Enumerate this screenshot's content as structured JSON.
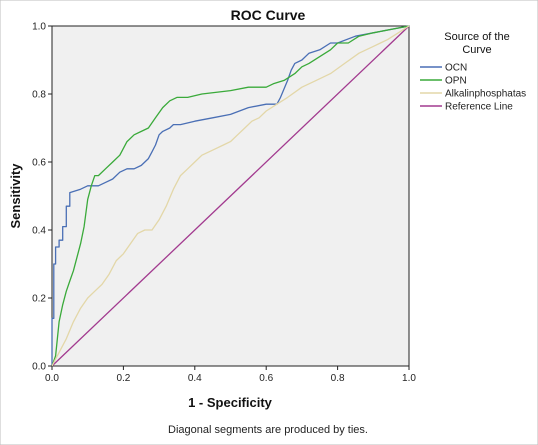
{
  "chart_data": {
    "type": "line",
    "title": "ROC Curve",
    "xlabel": "1 - Specificity",
    "ylabel": "Sensitivity",
    "xlim": [
      0,
      1
    ],
    "ylim": [
      0,
      1
    ],
    "xticks": [
      "0.0",
      "0.2",
      "0.4",
      "0.6",
      "0.8",
      "1.0"
    ],
    "yticks": [
      "0.0",
      "0.2",
      "0.4",
      "0.6",
      "0.8",
      "1.0"
    ],
    "grid": false,
    "legend_title": "Source of the Curve",
    "legend_position": "right",
    "footnote": "Diagonal segments are produced by ties.",
    "series": [
      {
        "name": "OCN",
        "color": "#4a6fb5",
        "x": [
          0,
          0,
          0.005,
          0.005,
          0.01,
          0.01,
          0.02,
          0.02,
          0.03,
          0.03,
          0.04,
          0.04,
          0.05,
          0.05,
          0.08,
          0.1,
          0.13,
          0.15,
          0.17,
          0.19,
          0.21,
          0.23,
          0.25,
          0.27,
          0.28,
          0.29,
          0.3,
          0.31,
          0.33,
          0.34,
          0.36,
          0.4,
          0.45,
          0.5,
          0.55,
          0.6,
          0.63,
          0.64,
          0.66,
          0.67,
          0.68,
          0.7,
          0.72,
          0.75,
          0.78,
          0.8,
          0.85,
          0.9,
          0.95,
          1.0
        ],
        "y": [
          0,
          0.14,
          0.14,
          0.3,
          0.3,
          0.35,
          0.35,
          0.37,
          0.37,
          0.41,
          0.41,
          0.47,
          0.47,
          0.51,
          0.52,
          0.53,
          0.53,
          0.54,
          0.55,
          0.57,
          0.58,
          0.58,
          0.59,
          0.61,
          0.63,
          0.65,
          0.68,
          0.69,
          0.7,
          0.71,
          0.71,
          0.72,
          0.73,
          0.74,
          0.76,
          0.77,
          0.77,
          0.79,
          0.84,
          0.87,
          0.89,
          0.9,
          0.92,
          0.93,
          0.95,
          0.95,
          0.97,
          0.98,
          0.99,
          1.0
        ]
      },
      {
        "name": "OPN",
        "color": "#3aaa3a",
        "x": [
          0,
          0.01,
          0.02,
          0.03,
          0.04,
          0.05,
          0.06,
          0.07,
          0.08,
          0.09,
          0.1,
          0.11,
          0.12,
          0.13,
          0.15,
          0.17,
          0.19,
          0.21,
          0.23,
          0.25,
          0.27,
          0.29,
          0.31,
          0.33,
          0.35,
          0.38,
          0.42,
          0.5,
          0.55,
          0.6,
          0.62,
          0.65,
          0.68,
          0.7,
          0.72,
          0.75,
          0.78,
          0.8,
          0.83,
          0.86,
          0.9,
          0.95,
          1.0
        ],
        "y": [
          0,
          0.03,
          0.13,
          0.18,
          0.22,
          0.25,
          0.28,
          0.32,
          0.36,
          0.41,
          0.49,
          0.53,
          0.56,
          0.56,
          0.58,
          0.6,
          0.62,
          0.66,
          0.68,
          0.69,
          0.7,
          0.73,
          0.76,
          0.78,
          0.79,
          0.79,
          0.8,
          0.81,
          0.82,
          0.82,
          0.83,
          0.84,
          0.86,
          0.88,
          0.89,
          0.91,
          0.93,
          0.95,
          0.95,
          0.97,
          0.98,
          0.99,
          1.0
        ]
      },
      {
        "name": "Alkalinphosphatas",
        "color": "#e3d7a8",
        "x": [
          0,
          0.02,
          0.04,
          0.06,
          0.08,
          0.1,
          0.12,
          0.14,
          0.16,
          0.18,
          0.2,
          0.22,
          0.24,
          0.26,
          0.28,
          0.3,
          0.32,
          0.34,
          0.36,
          0.38,
          0.4,
          0.42,
          0.44,
          0.46,
          0.48,
          0.5,
          0.52,
          0.54,
          0.56,
          0.58,
          0.6,
          0.63,
          0.66,
          0.7,
          0.74,
          0.78,
          0.82,
          0.86,
          0.9,
          0.94,
          0.97,
          1.0
        ],
        "y": [
          0,
          0.04,
          0.08,
          0.13,
          0.17,
          0.2,
          0.22,
          0.24,
          0.27,
          0.31,
          0.33,
          0.36,
          0.39,
          0.4,
          0.4,
          0.43,
          0.47,
          0.52,
          0.56,
          0.58,
          0.6,
          0.62,
          0.63,
          0.64,
          0.65,
          0.66,
          0.68,
          0.7,
          0.72,
          0.73,
          0.75,
          0.77,
          0.79,
          0.82,
          0.84,
          0.86,
          0.89,
          0.92,
          0.94,
          0.96,
          0.98,
          1.0
        ]
      },
      {
        "name": "Reference Line",
        "color": "#a23a8f",
        "x": [
          0,
          1
        ],
        "y": [
          0,
          1
        ]
      }
    ]
  }
}
